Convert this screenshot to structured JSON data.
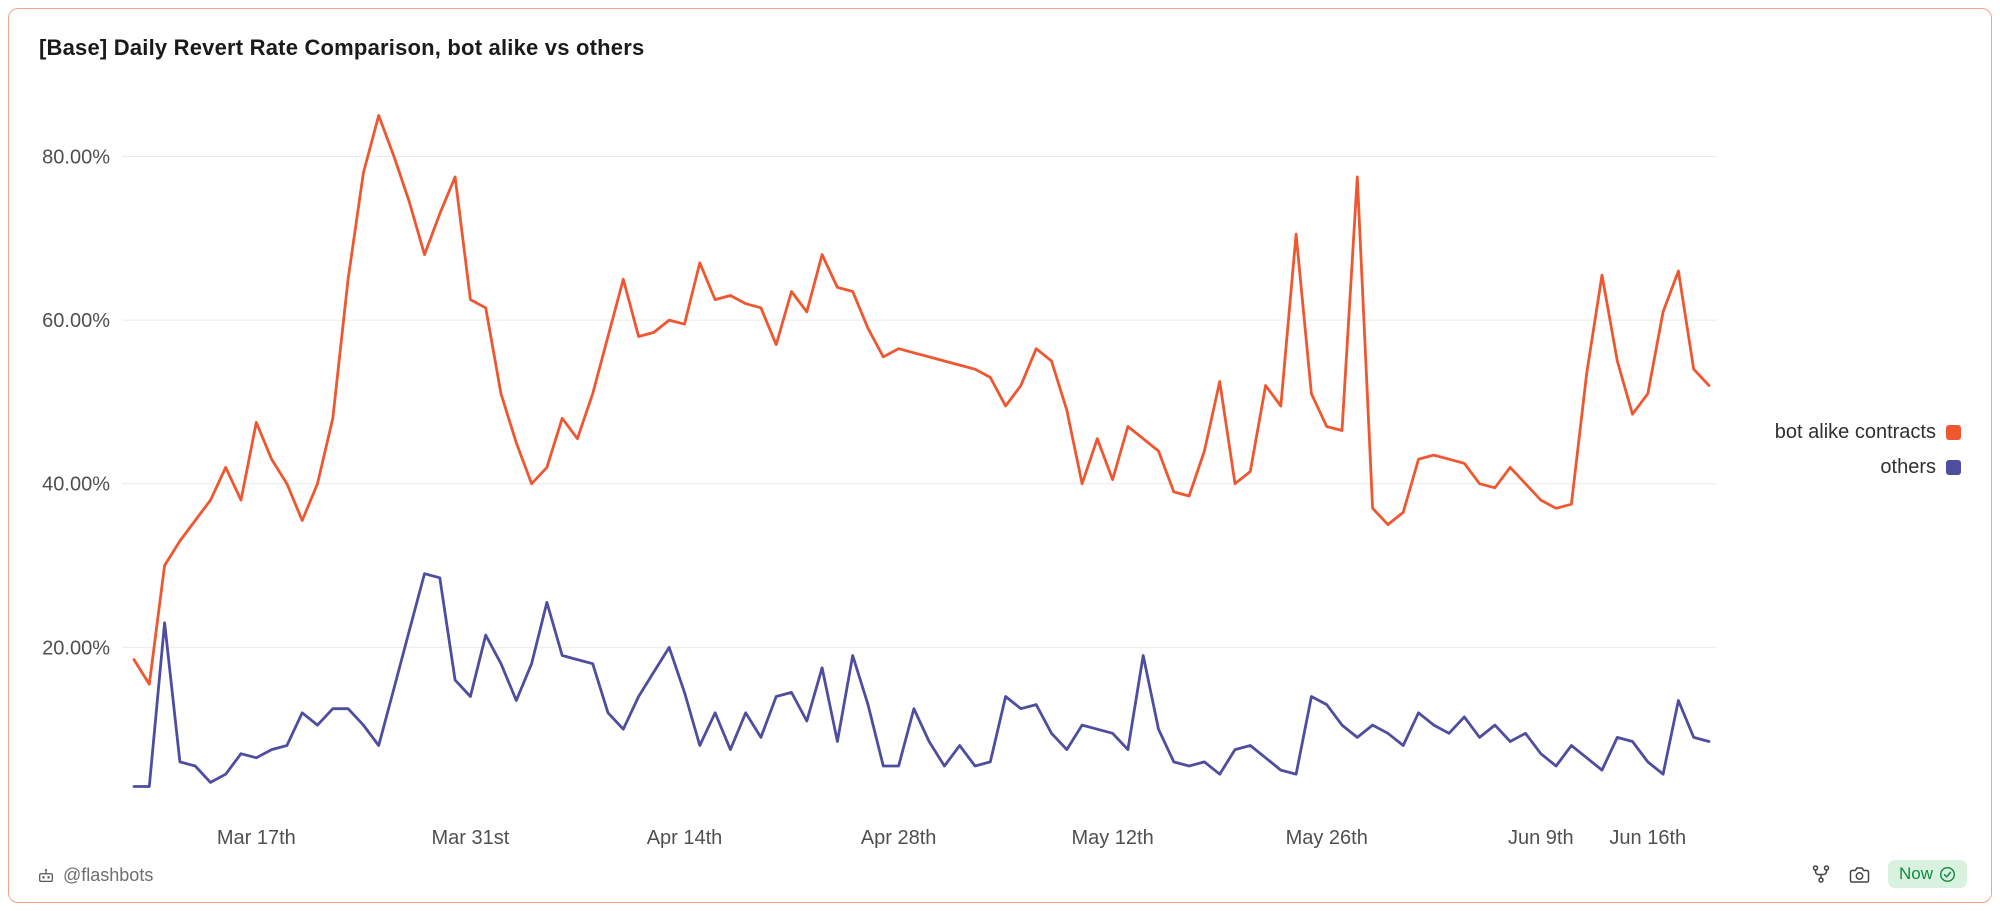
{
  "chart_data": {
    "type": "line",
    "title": "[Base] Daily Revert Rate Comparison, bot alike vs others",
    "unit": "percent",
    "grid": "horizontal",
    "legend_position": "right",
    "y_min": 0,
    "y_max": 88,
    "y_tick_values": [
      20,
      40,
      60,
      80
    ],
    "y_tick_labels": [
      "20.00%",
      "40.00%",
      "60.00%",
      "80.00%"
    ],
    "x_ticks": [
      {
        "label": "Mar 17th",
        "index": 8
      },
      {
        "label": "Mar 31st",
        "index": 22
      },
      {
        "label": "Apr 14th",
        "index": 36
      },
      {
        "label": "Apr 28th",
        "index": 50
      },
      {
        "label": "May 12th",
        "index": 64
      },
      {
        "label": "May 26th",
        "index": 78
      },
      {
        "label": "Jun 9th",
        "index": 92
      },
      {
        "label": "Jun 16th",
        "index": 99
      }
    ],
    "series": [
      {
        "id": "bot-alike-contracts",
        "name": "bot alike contracts",
        "color": "#ee5730",
        "values": [
          18.5,
          15.5,
          30,
          33,
          35.5,
          38,
          42,
          38,
          47.5,
          43,
          40,
          35.5,
          40,
          48,
          65,
          78,
          85,
          80,
          74.5,
          68,
          73,
          77.5,
          62.5,
          61.5,
          51,
          45,
          40,
          42,
          48,
          45.5,
          51,
          58,
          65,
          58,
          58.5,
          60,
          59.5,
          67,
          62.5,
          63,
          62,
          61.5,
          57,
          63.5,
          61,
          68,
          64,
          63.5,
          59,
          55.5,
          56.5,
          56,
          55.5,
          55,
          54.5,
          54,
          53,
          49.5,
          52,
          56.5,
          55,
          49,
          40,
          45.5,
          40.5,
          47,
          45.5,
          44,
          39,
          38.5,
          44,
          52.5,
          40,
          41.5,
          52,
          49.5,
          70.5,
          51,
          47,
          46.5,
          77.5,
          37,
          35,
          36.5,
          43,
          43.5,
          43,
          42.5,
          40,
          39.5,
          42,
          40,
          38,
          37,
          37.5,
          53.5,
          65.5,
          55,
          48.5,
          51,
          61,
          66,
          54,
          52
        ]
      },
      {
        "id": "others",
        "name": "others",
        "color": "#4e4d9e",
        "values": [
          3,
          3,
          23,
          6,
          5.5,
          3.5,
          4.5,
          7,
          6.5,
          7.5,
          8,
          12,
          10.5,
          12.5,
          12.5,
          10.5,
          8,
          15,
          22,
          29,
          28.5,
          16,
          14,
          21.5,
          18,
          13.5,
          18,
          25.5,
          19,
          18.5,
          18,
          12,
          10,
          14,
          17,
          20,
          14.5,
          8,
          12,
          7.5,
          12,
          9,
          14,
          14.5,
          11,
          17.5,
          8.5,
          19,
          13,
          5.5,
          5.5,
          12.5,
          8.5,
          5.5,
          8,
          5.5,
          6,
          14,
          12.5,
          13,
          9.5,
          7.5,
          10.5,
          10,
          9.5,
          7.5,
          19,
          10,
          6,
          5.5,
          6,
          4.5,
          7.5,
          8,
          6.5,
          5,
          4.5,
          14,
          13,
          10.5,
          9,
          10.5,
          9.5,
          8,
          12,
          10.5,
          9.5,
          11.5,
          9,
          10.5,
          8.5,
          9.5,
          7,
          5.5,
          8,
          6.5,
          5,
          9,
          8.5,
          6,
          4.5,
          13.5,
          9,
          8.5
        ]
      }
    ]
  },
  "footer": {
    "author": "@flashbots",
    "freshness_label": "Now"
  },
  "colors": {
    "accent_orange": "#ee5730",
    "accent_purple": "#4e4d9e",
    "grid": "#ebebeb",
    "axis_text": "#4f4f4f",
    "title_text": "#1a1a1a",
    "card_border": "#f2a285",
    "badge_bg": "#d9f2e0",
    "badge_text": "#0f8a41",
    "footer_text": "#6e6e6e",
    "icon": "#444444"
  }
}
